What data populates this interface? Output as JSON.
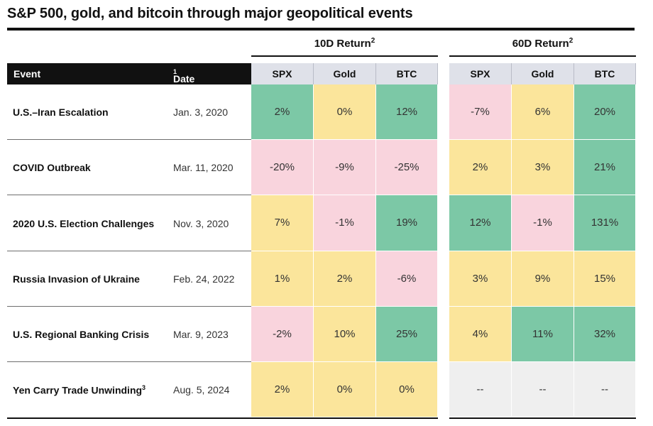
{
  "title": "S&P 500, gold, and bitcoin through major geopolitical events",
  "groups": {
    "g10": {
      "label": "10D Return",
      "sup": "2"
    },
    "g60": {
      "label": "60D Return",
      "sup": "2"
    }
  },
  "header": {
    "event": "Event",
    "date": "Date",
    "date_sup": "1"
  },
  "columns": [
    "SPX",
    "Gold",
    "BTC",
    "SPX",
    "Gold",
    "BTC"
  ],
  "colors": {
    "green": "#7cc8a6",
    "yellow": "#fbe59b",
    "pink": "#f9d4dd",
    "gray": "#efefef",
    "header": "#dfe1e9"
  },
  "chart_data": {
    "type": "table",
    "title": "S&P 500, gold, and bitcoin through major geopolitical events",
    "column_groups": [
      {
        "name": "10D Return",
        "columns": [
          "SPX",
          "Gold",
          "BTC"
        ]
      },
      {
        "name": "60D Return",
        "columns": [
          "SPX",
          "Gold",
          "BTC"
        ]
      }
    ],
    "rows": [
      {
        "event": "U.S.–Iran Escalation",
        "sup": "",
        "date": "Jan. 3, 2020",
        "values": [
          "2%",
          "0%",
          "12%",
          "-7%",
          "6%",
          "20%"
        ],
        "colors": [
          "green",
          "yellow",
          "green",
          "pink",
          "yellow",
          "green"
        ]
      },
      {
        "event": "COVID Outbreak",
        "sup": "",
        "date": "Mar. 11, 2020",
        "values": [
          "-20%",
          "-9%",
          "-25%",
          "2%",
          "3%",
          "21%"
        ],
        "colors": [
          "pink",
          "pink",
          "pink",
          "yellow",
          "yellow",
          "green"
        ]
      },
      {
        "event": "2020 U.S. Election Challenges",
        "sup": "",
        "date": "Nov. 3, 2020",
        "values": [
          "7%",
          "-1%",
          "19%",
          "12%",
          "-1%",
          "131%"
        ],
        "colors": [
          "yellow",
          "pink",
          "green",
          "green",
          "pink",
          "green"
        ]
      },
      {
        "event": "Russia Invasion of Ukraine",
        "sup": "",
        "date": "Feb. 24, 2022",
        "values": [
          "1%",
          "2%",
          "-6%",
          "3%",
          "9%",
          "15%"
        ],
        "colors": [
          "yellow",
          "yellow",
          "pink",
          "yellow",
          "yellow",
          "yellow"
        ]
      },
      {
        "event": "U.S. Regional Banking Crisis",
        "sup": "",
        "date": "Mar. 9, 2023",
        "values": [
          "-2%",
          "10%",
          "25%",
          "4%",
          "11%",
          "32%"
        ],
        "colors": [
          "pink",
          "yellow",
          "green",
          "yellow",
          "green",
          "green"
        ]
      },
      {
        "event": "Yen Carry Trade Unwinding",
        "sup": "3",
        "date": "Aug. 5, 2024",
        "values": [
          "2%",
          "0%",
          "0%",
          "--",
          "--",
          "--"
        ],
        "colors": [
          "yellow",
          "yellow",
          "yellow",
          "gray",
          "gray",
          "gray"
        ]
      }
    ]
  }
}
